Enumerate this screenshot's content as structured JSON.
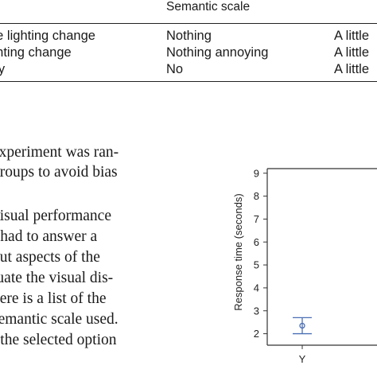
{
  "table": {
    "header": "Semantic scale",
    "rows": [
      {
        "label": "he lighting change",
        "scale": "Nothing",
        "scale2": "A little"
      },
      {
        "label": "ghting change",
        "scale": "Nothing annoying",
        "scale2": "A little"
      },
      {
        "label": "lity",
        "scale": "No",
        "scale2": "A little"
      }
    ]
  },
  "paragraph": {
    "lines": [
      "experiment was ran-",
      "groups to avoid bias",
      "visual performance",
      "t had to answer a",
      "out aspects of the",
      "luate the visual dis-",
      "here is a list of the",
      "semantic scale used.",
      "t the selected option"
    ]
  },
  "chart_data": {
    "type": "scatter",
    "ylabel": "Response time (seconds)",
    "ylim": [
      1.5,
      9.2
    ],
    "yticks": [
      "2",
      "3",
      "4",
      "5",
      "6",
      "7",
      "8",
      "9"
    ],
    "categories": [
      "Y"
    ],
    "points": [
      {
        "category": "Y",
        "mean": 2.35,
        "low": 2.0,
        "high": 2.7
      }
    ],
    "colors": {
      "marker": "#4a6fb5",
      "axis": "#333333"
    }
  }
}
